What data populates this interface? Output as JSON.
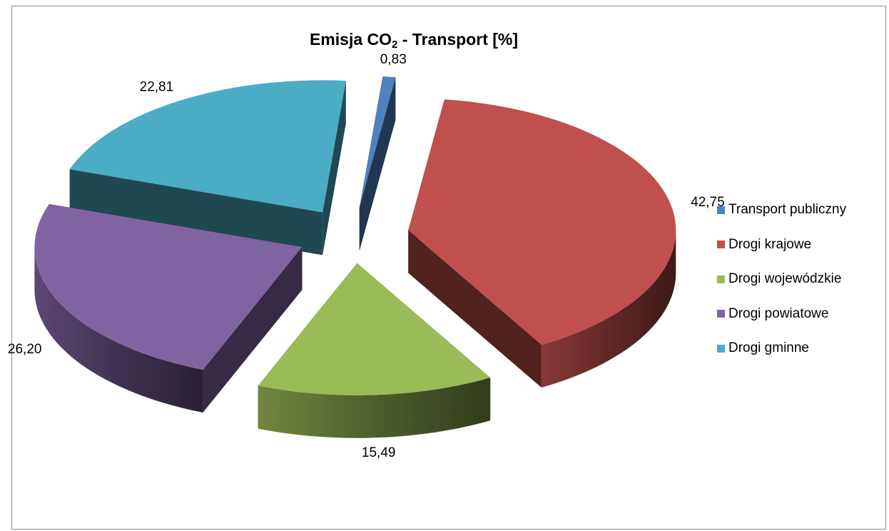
{
  "chart_data": {
    "type": "pie",
    "title_main": "Emisja CO",
    "title_sub": "2",
    "title_rest": " - Transport [%]",
    "categories": [
      "Transport publiczny",
      "Drogi krajowe",
      "Drogi wojewódzkie",
      "Drogi powiatowe",
      "Drogi gminne"
    ],
    "values": [
      0.83,
      42.75,
      15.49,
      26.2,
      22.81
    ],
    "data_labels": [
      "0,83",
      "42,75",
      "15,49",
      "26,20",
      "22,81"
    ],
    "colors": [
      "#4f81bd",
      "#c0504d",
      "#9bbb59",
      "#8064a2",
      "#4bacc6"
    ],
    "exploded": true,
    "three_d": true,
    "legend_position": "right"
  }
}
